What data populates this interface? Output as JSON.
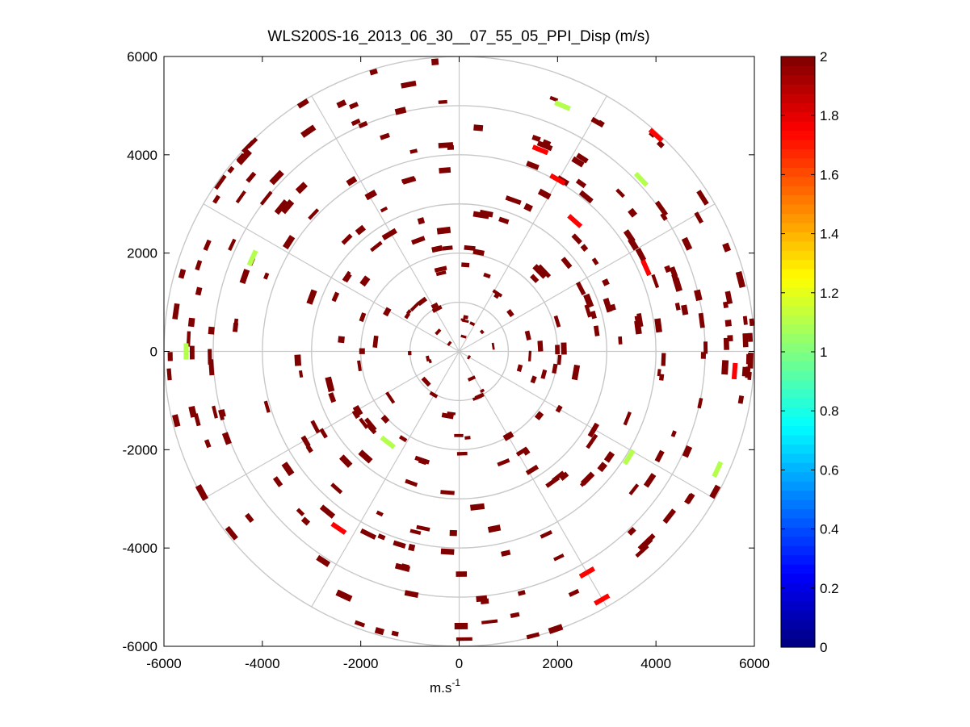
{
  "chart_data": {
    "type": "scatter",
    "subtype": "polar-ppi-wind-display",
    "title": "WLS200S-16_2013_06_30__07_55_05_PPI_Disp (m/s)",
    "xlabel": "m.s",
    "xlabel_superscript": "-1",
    "ylabel": "",
    "xlim": [
      -6000,
      6000
    ],
    "ylim": [
      -6000,
      6000
    ],
    "x_ticks": [
      -6000,
      -4000,
      -2000,
      0,
      2000,
      4000,
      6000
    ],
    "y_ticks": [
      -6000,
      -4000,
      -2000,
      0,
      2000,
      4000,
      6000
    ],
    "x_tick_labels": [
      "-6000",
      "-4000",
      "-2000",
      "0",
      "2000",
      "4000",
      "6000"
    ],
    "y_tick_labels": [
      "-6000",
      "-4000",
      "-2000",
      "0",
      "2000",
      "4000",
      "6000"
    ],
    "range_rings": [
      1000,
      2000,
      3000,
      4000,
      5000,
      6000
    ],
    "spoke_angles_deg": [
      0,
      30,
      60,
      90,
      120,
      150,
      180,
      210,
      240,
      270,
      300,
      330
    ],
    "colorbar": {
      "colormap": "jet",
      "min": 0,
      "max": 2,
      "ticks": [
        0,
        0.2,
        0.4,
        0.6,
        0.8,
        1,
        1.2,
        1.4,
        1.6,
        1.8,
        2
      ],
      "tick_labels": [
        "0",
        "0.2",
        "0.4",
        "0.6",
        "0.8",
        "1",
        "1.2",
        "1.4",
        "1.6",
        "1.8",
        "2"
      ]
    },
    "highlight_points": [
      {
        "x": 2100,
        "y": 5000,
        "value": 1.1
      },
      {
        "x": 3700,
        "y": 3500,
        "value": 1.1
      },
      {
        "x": -4200,
        "y": 1900,
        "value": 1.1
      },
      {
        "x": -5550,
        "y": 0,
        "value": 1.1
      },
      {
        "x": -1450,
        "y": -1850,
        "value": 1.1
      },
      {
        "x": 3450,
        "y": -2150,
        "value": 1.1
      },
      {
        "x": 5250,
        "y": -2400,
        "value": 1.1
      },
      {
        "x": 4000,
        "y": 4400,
        "value": 1.75
      },
      {
        "x": 1650,
        "y": 4100,
        "value": 1.75
      },
      {
        "x": 2000,
        "y": 3500,
        "value": 1.75
      },
      {
        "x": 2350,
        "y": 2650,
        "value": 1.75
      },
      {
        "x": 3800,
        "y": 1700,
        "value": 1.75
      },
      {
        "x": 5600,
        "y": -400,
        "value": 1.75
      },
      {
        "x": -2450,
        "y": -3600,
        "value": 1.75
      },
      {
        "x": 2600,
        "y": -4500,
        "value": 1.75
      },
      {
        "x": 2900,
        "y": -5050,
        "value": 1.75
      }
    ],
    "dominant_value": 2,
    "note": "Most range gates on all rings are saturated at the colormap maximum (dark red, value 2)."
  }
}
